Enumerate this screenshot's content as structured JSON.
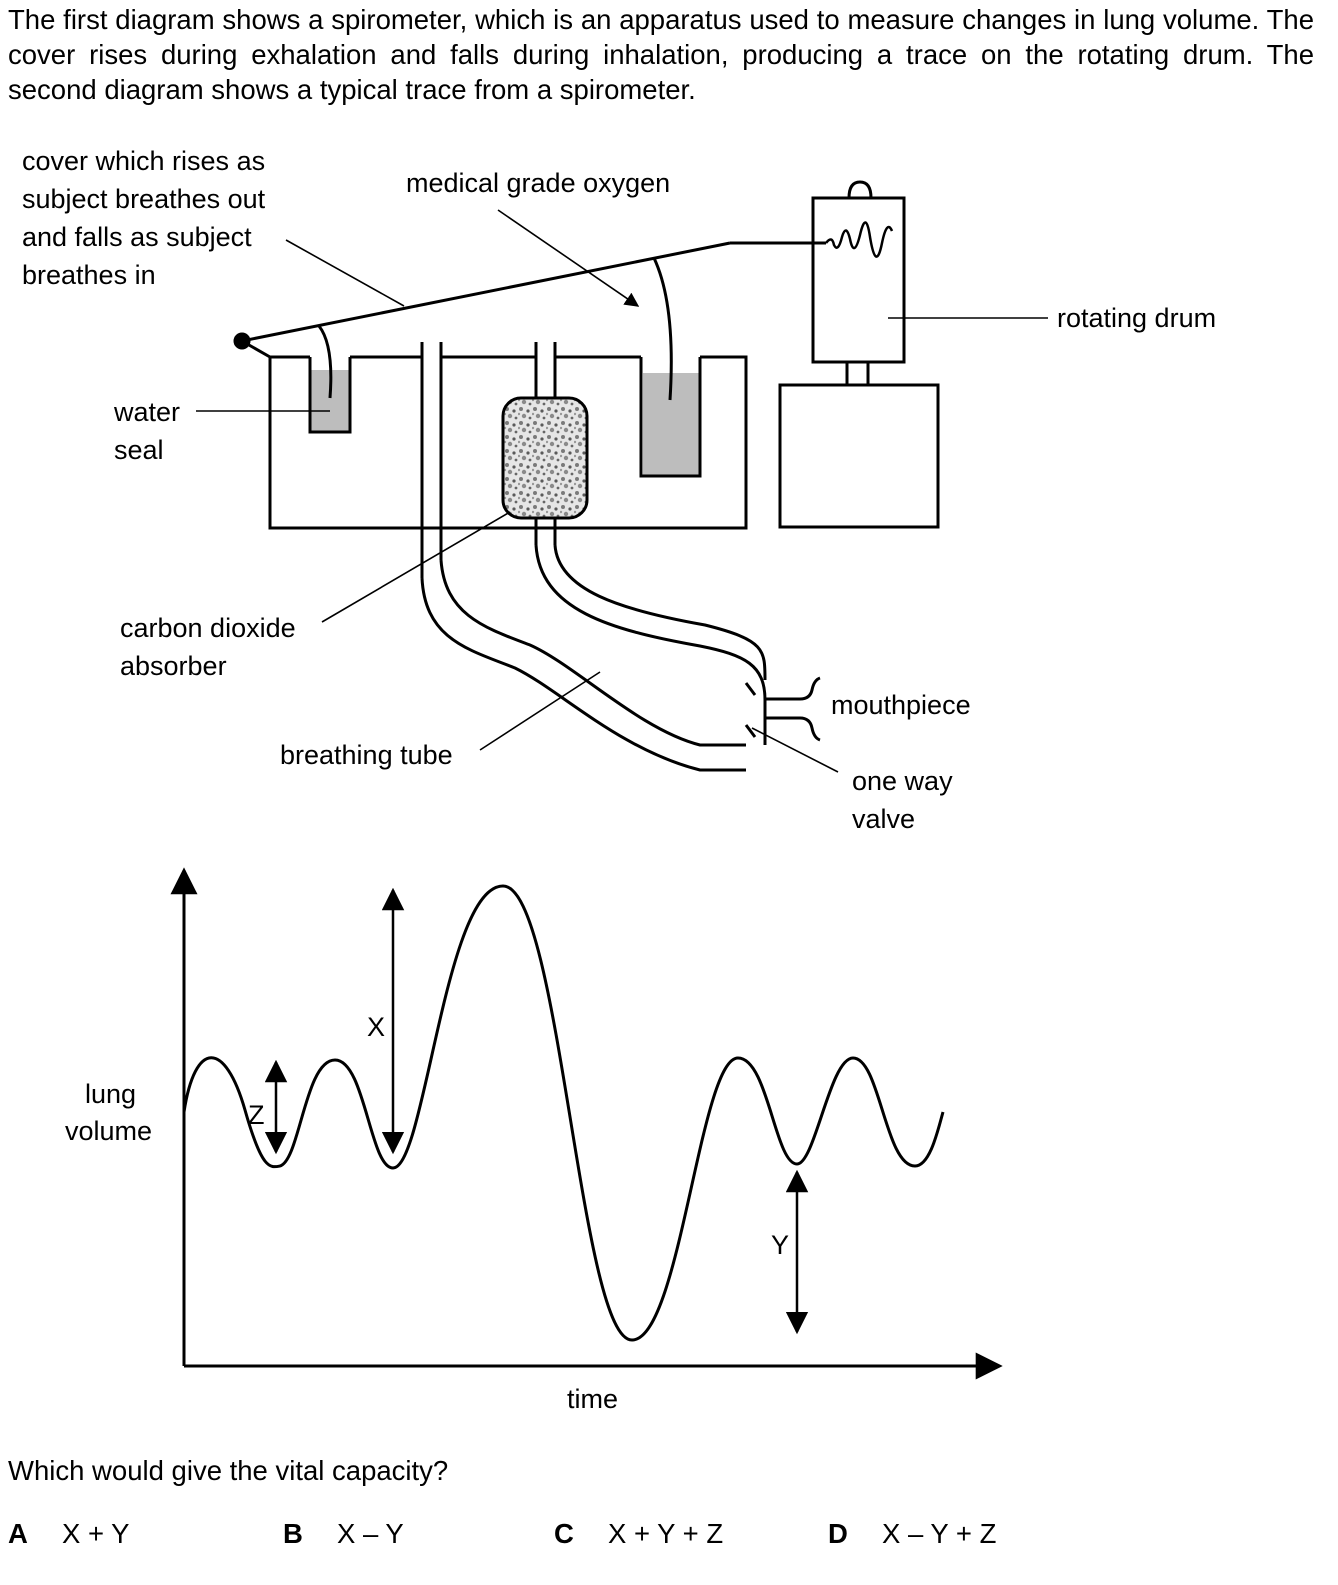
{
  "intro": "The first diagram shows a spirometer, which is an apparatus used to measure changes in lung volume. The cover rises during exhalation and falls during inhalation, producing a trace on the rotating drum. The second diagram shows a typical trace from a spirometer.",
  "spirometer": {
    "cover_label": [
      "cover which rises as",
      "subject breathes out",
      "and falls as subject",
      "breathes in"
    ],
    "oxygen_label": "medical grade oxygen",
    "drum_label": "rotating drum",
    "seal_label": [
      "water",
      "seal"
    ],
    "absorber_label": [
      "carbon dioxide",
      "absorber"
    ],
    "mouthpiece_label": "mouthpiece",
    "tube_label": "breathing tube",
    "valve_label": [
      "one way",
      "valve"
    ]
  },
  "trace": {
    "ylabel": [
      "lung",
      "volume"
    ],
    "xlabel": "time",
    "markers": {
      "x": "X",
      "y": "Y",
      "z": "Z"
    }
  },
  "question": "Which would give the vital capacity?",
  "options": [
    {
      "letter": "A",
      "text": "X + Y"
    },
    {
      "letter": "B",
      "text": "X – Y"
    },
    {
      "letter": "C",
      "text": "X + Y + Z"
    },
    {
      "letter": "D",
      "text": "X – Y + Z"
    }
  ]
}
